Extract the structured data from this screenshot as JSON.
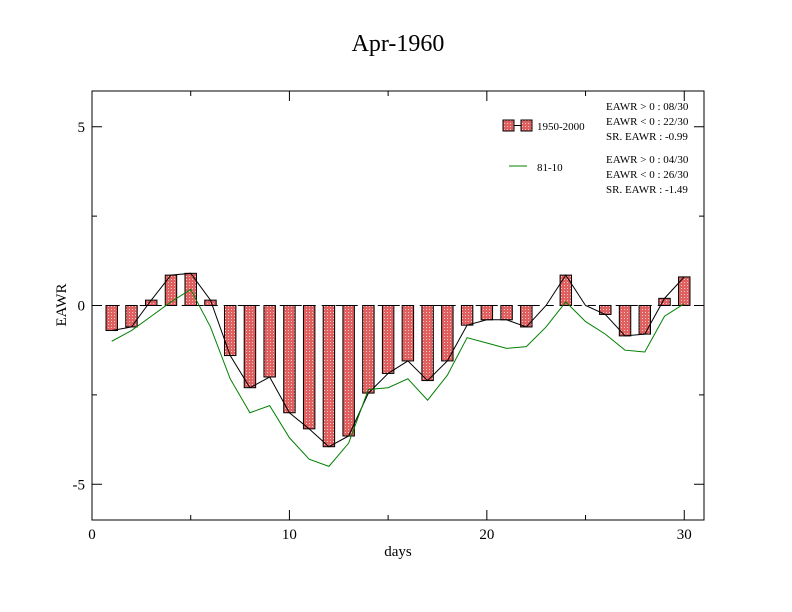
{
  "chart_data": {
    "type": "bar",
    "title": "Apr-1960",
    "xlabel": "days",
    "ylabel": "EAWR",
    "xlim": [
      0,
      31
    ],
    "ylim": [
      -6,
      6
    ],
    "xticks": [
      0,
      10,
      20,
      30
    ],
    "xtick_labels": [
      "0",
      "10",
      "20",
      "30"
    ],
    "yticks": [
      -5,
      0,
      5
    ],
    "ytick_labels": [
      "-5",
      "0",
      "5"
    ],
    "x": [
      1,
      2,
      3,
      4,
      5,
      6,
      7,
      8,
      9,
      10,
      11,
      12,
      13,
      14,
      15,
      16,
      17,
      18,
      19,
      20,
      21,
      22,
      23,
      24,
      25,
      26,
      27,
      28,
      29,
      30
    ],
    "series": [
      {
        "name": "1950-2000",
        "kind": "bar",
        "fill": "#e06060",
        "values": [
          -0.7,
          -0.6,
          0.15,
          0.85,
          0.9,
          0.15,
          -1.4,
          -2.3,
          -2.0,
          -3.0,
          -3.45,
          -3.95,
          -3.65,
          -2.45,
          -1.9,
          -1.55,
          -2.1,
          -1.55,
          -0.55,
          -0.4,
          -0.4,
          -0.6,
          0.0,
          0.85,
          0.0,
          -0.25,
          -0.85,
          -0.8,
          0.2,
          0.8
        ]
      },
      {
        "name": "",
        "kind": "line",
        "color": "#000000",
        "values": [
          -0.7,
          -0.6,
          0.15,
          0.85,
          0.9,
          0.15,
          -1.4,
          -2.3,
          -2.0,
          -3.0,
          -3.45,
          -3.95,
          -3.65,
          -2.45,
          -1.9,
          -1.55,
          -2.1,
          -1.55,
          -0.55,
          -0.4,
          -0.4,
          -0.6,
          0.0,
          0.85,
          0.0,
          -0.25,
          -0.85,
          -0.8,
          0.2,
          0.8
        ]
      },
      {
        "name": "81-10",
        "kind": "line",
        "color": "#008000",
        "values": [
          -1.0,
          -0.7,
          -0.3,
          0.1,
          0.45,
          -0.6,
          -2.05,
          -3.0,
          -2.8,
          -3.7,
          -4.3,
          -4.5,
          -3.85,
          -2.35,
          -2.3,
          -2.05,
          -2.65,
          -1.95,
          -0.9,
          -1.05,
          -1.2,
          -1.15,
          -0.6,
          0.1,
          -0.45,
          -0.8,
          -1.25,
          -1.3,
          -0.3,
          0.05
        ]
      }
    ],
    "zero_line": {
      "dashed": true,
      "color": "#000000"
    },
    "legend": {
      "placement": "top-right",
      "entries": [
        {
          "label": "1950-2000",
          "stats": [
            "EAWR > 0 : 08/30",
            "EAWR < 0 : 22/30",
            "SR. EAWR : -0.99"
          ]
        },
        {
          "label": "81-10",
          "stats": [
            "EAWR > 0 : 04/30",
            "EAWR < 0 : 26/30",
            "SR. EAWR : -1.49"
          ]
        }
      ]
    },
    "grid": false
  }
}
